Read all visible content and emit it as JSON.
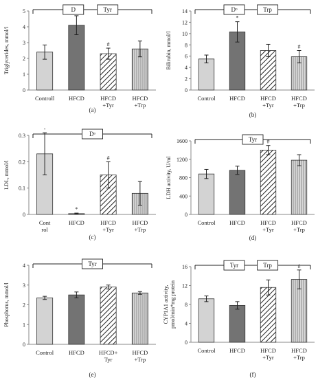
{
  "colors": {
    "control": "#d3d3d3",
    "hfcd": "#737373",
    "hatch": "#222222",
    "stripe": "#9a9a9a",
    "axis": "#888888",
    "ink": "#222222"
  },
  "chart_data": [
    {
      "id": "a",
      "type": "bar",
      "panel_label": "(a)",
      "ylabel": "Triglycerides, mmol/l",
      "ylim": [
        0,
        5
      ],
      "yticks": [
        0,
        1,
        2,
        3,
        4,
        5
      ],
      "categories": [
        "Controll",
        "HFCD",
        "HFCD\n+Tyr",
        "HFCD\n+Trp"
      ],
      "values": [
        2.4,
        4.1,
        2.3,
        2.6
      ],
      "errors": [
        0.45,
        0.6,
        0.35,
        0.5
      ],
      "annotations": [
        "",
        "",
        "#",
        ""
      ],
      "bracket_labels": [
        "D",
        "Tyr"
      ]
    },
    {
      "id": "b",
      "type": "bar",
      "panel_label": "(b)",
      "ylabel": "Bilirubin, mmol/l",
      "ylim": [
        0,
        14
      ],
      "yticks": [
        0,
        2,
        4,
        6,
        8,
        10,
        12,
        14
      ],
      "categories": [
        "Control",
        "HFCD",
        "HFCD\n+Tyr",
        "HFCD\n+Trp"
      ],
      "values": [
        5.5,
        10.3,
        7.0,
        5.9
      ],
      "errors": [
        0.7,
        1.8,
        1.1,
        1.1
      ],
      "annotations": [
        "",
        "*",
        "",
        "#"
      ],
      "bracket_labels": [
        "Dᵒ",
        "Trp"
      ]
    },
    {
      "id": "c",
      "type": "bar",
      "panel_label": "(c)",
      "ylabel": "LDL, mmol/l",
      "ylim": [
        0,
        0.3
      ],
      "yticks": [
        0,
        0.1,
        0.2,
        0.3
      ],
      "categories": [
        "Cont\nrol",
        "HFCD",
        "HFCD\n+Tyr",
        "HFCD\n+Trp"
      ],
      "values": [
        0.23,
        0.003,
        0.15,
        0.08
      ],
      "errors": [
        0.08,
        0.002,
        0.05,
        0.045
      ],
      "annotations": [
        "-",
        "*",
        "#",
        ""
      ],
      "bracket_labels": [
        "Dᵒ"
      ]
    },
    {
      "id": "d",
      "type": "bar",
      "panel_label": "(d)",
      "ylabel": "LDH activity, U/ml",
      "ylim": [
        0,
        1600
      ],
      "yticks": [
        0,
        400,
        800,
        1200,
        1600
      ],
      "categories": [
        "Control",
        "HFCD",
        "HFCD\n+Tyr",
        "HFCD\n+Trp"
      ],
      "values": [
        880,
        960,
        1400,
        1180
      ],
      "errors": [
        100,
        90,
        100,
        120
      ],
      "annotations": [
        "",
        "",
        "#",
        ""
      ],
      "bracket_labels": [
        "Tyr"
      ]
    },
    {
      "id": "e",
      "type": "bar",
      "panel_label": "(e)",
      "ylabel": "Phosphorus, mmol/l",
      "ylim": [
        0,
        4
      ],
      "yticks": [
        0,
        1,
        2,
        3,
        4
      ],
      "categories": [
        "Control",
        "HFCD",
        "HFCD+\nTyr",
        "HFCD\n+Trp"
      ],
      "values": [
        2.35,
        2.5,
        2.9,
        2.6
      ],
      "errors": [
        0.08,
        0.15,
        0.1,
        0.07
      ],
      "annotations": [
        "",
        "",
        "",
        ""
      ],
      "bracket_labels": [
        "Tyr"
      ]
    },
    {
      "id": "f",
      "type": "bar",
      "panel_label": "(f)",
      "ylabel": "CYP1A1 activity,\npmol/min*mg protein",
      "ylim": [
        0,
        16
      ],
      "yticks": [
        0,
        4,
        8,
        12,
        16
      ],
      "categories": [
        "Control",
        "HFCD",
        "HFCD\n+Tyr",
        "HFCD\n+Trp"
      ],
      "values": [
        9.2,
        7.8,
        11.6,
        13.3
      ],
      "errors": [
        0.6,
        0.8,
        1.6,
        2.0
      ],
      "annotations": [
        "",
        "",
        "",
        "#"
      ],
      "bracket_labels": [
        "Tyr",
        "Trp"
      ]
    }
  ]
}
